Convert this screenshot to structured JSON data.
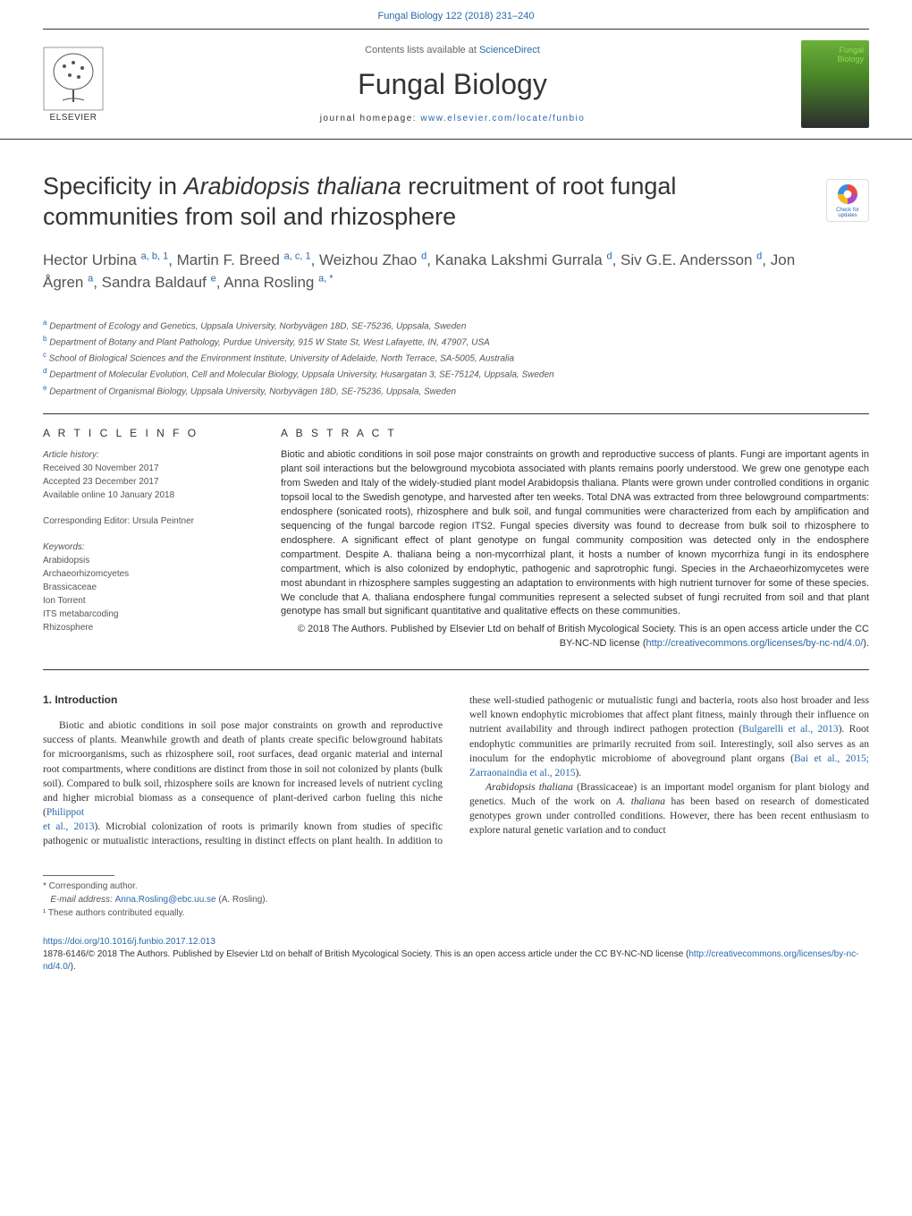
{
  "header": {
    "citation_link": "Fungal Biology 122 (2018) 231–240",
    "sciencedirect_prefix": "Contents lists available at ",
    "sciencedirect": "ScienceDirect",
    "journal_name": "Fungal Biology",
    "homepage_prefix": "journal homepage: ",
    "homepage_url": "www.elsevier.com/locate/funbio",
    "elsevier": "ELSEVIER"
  },
  "title": "Specificity in Arabidopsis thaliana recruitment of root fungal communities from soil and rhizosphere",
  "authors_html": "Hector Urbina <span class='aff-sup'>a, b, 1</span>, Martin F. Breed <span class='aff-sup'>a, c, 1</span>, Weizhou Zhao <span class='aff-sup'>d</span>, Kanaka Lakshmi Gurrala <span class='aff-sup'>d</span>, Siv G.E. Andersson <span class='aff-sup'>d</span>, Jon Ågren <span class='aff-sup'>a</span>, Sandra Baldauf <span class='aff-sup'>e</span>, Anna Rosling <span class='aff-sup'>a, *</span>",
  "affiliations": [
    {
      "sup": "a",
      "text": "Department of Ecology and Genetics, Uppsala University, Norbyvägen 18D, SE-75236, Uppsala, Sweden"
    },
    {
      "sup": "b",
      "text": "Department of Botany and Plant Pathology, Purdue University, 915 W State St, West Lafayette, IN, 47907, USA"
    },
    {
      "sup": "c",
      "text": "School of Biological Sciences and the Environment Institute, University of Adelaide, North Terrace, SA-5005, Australia"
    },
    {
      "sup": "d",
      "text": "Department of Molecular Evolution, Cell and Molecular Biology, Uppsala University, Husargatan 3, SE-75124, Uppsala, Sweden"
    },
    {
      "sup": "e",
      "text": "Department of Organismal Biology, Uppsala University, Norbyvägen 18D, SE-75236, Uppsala, Sweden"
    }
  ],
  "check_badge": "Check for updates",
  "article_info": {
    "heading": "A R T I C L E  I N F O",
    "history_label": "Article history:",
    "received": "Received 30 November 2017",
    "accepted": "Accepted 23 December 2017",
    "online": "Available online 10 January 2018",
    "editor": "Corresponding Editor: Ursula Peintner",
    "keywords_label": "Keywords:",
    "keywords": [
      "Arabidopsis",
      "Archaeorhizomcyetes",
      "Brassicaceae",
      "Ion Torrent",
      "ITS metabarcoding",
      "Rhizosphere"
    ]
  },
  "abstract": {
    "heading": "A B S T R A C T",
    "text": "Biotic and abiotic conditions in soil pose major constraints on growth and reproductive success of plants. Fungi are important agents in plant soil interactions but the belowground mycobiota associated with plants remains poorly understood. We grew one genotype each from Sweden and Italy of the widely-studied plant model Arabidopsis thaliana. Plants were grown under controlled conditions in organic topsoil local to the Swedish genotype, and harvested after ten weeks. Total DNA was extracted from three belowground compartments: endosphere (sonicated roots), rhizosphere and bulk soil, and fungal communities were characterized from each by amplification and sequencing of the fungal barcode region ITS2. Fungal species diversity was found to decrease from bulk soil to rhizosphere to endosphere. A significant effect of plant genotype on fungal community composition was detected only in the endosphere compartment. Despite A. thaliana being a non-mycorrhizal plant, it hosts a number of known mycorrhiza fungi in its endosphere compartment, which is also colonized by endophytic, pathogenic and saprotrophic fungi. Species in the Archaeorhizomycetes were most abundant in rhizosphere samples suggesting an adaptation to environments with high nutrient turnover for some of these species. We conclude that A. thaliana endosphere fungal communities represent a selected subset of fungi recruited from soil and that plant genotype has small but significant quantitative and qualitative effects on these communities.",
    "copyright": "© 2018 The Authors. Published by Elsevier Ltd on behalf of British Mycological Society. This is an open access article under the CC BY-NC-ND license (",
    "license_url": "http://creativecommons.org/licenses/by-nc-nd/4.0/",
    "copyright_close": ")."
  },
  "intro": {
    "heading": "1. Introduction",
    "para1": "Biotic and abiotic conditions in soil pose major constraints on growth and reproductive success of plants. Meanwhile growth and death of plants create specific belowground habitats for microorganisms, such as rhizosphere soil, root surfaces, dead organic material and internal root compartments, where conditions are distinct from those in soil not colonized by plants (bulk soil). Compared to bulk soil, rhizosphere soils are known for increased levels of nutrient cycling and higher microbial biomass as a consequence of plant-derived carbon fueling this niche (Philippot",
    "para2_pre": "et al., 2013). Microbial colonization of roots is primarily known from studies of specific pathogenic or mutualistic interactions, resulting in distinct effects on plant health. In addition to these well-studied pathogenic or mutualistic fungi and bacteria, roots also host broader and less well known endophytic microbiomes that affect plant fitness, mainly through their influence on nutrient availability and through indirect pathogen protection (Bulgarelli et al., 2013). Root endophytic communities are primarily recruited from soil. Interestingly, soil also serves as an inoculum for the endophytic microbiome of aboveground plant organs (Bai et al., 2015; Zarraonaindia et al., 2015).",
    "para3": "Arabidopsis thaliana (Brassicaceae) is an important model organism for plant biology and genetics. Much of the work on A. thaliana has been based on research of domesticated genotypes grown under controlled conditions. However, there has been recent enthusiasm to explore natural genetic variation and to conduct"
  },
  "footnotes": {
    "corr": "* Corresponding author.",
    "email_label": "E-mail address: ",
    "email": "Anna.Rosling@ebc.uu.se",
    "email_suffix": " (A. Rosling).",
    "note1": "¹ These authors contributed equally."
  },
  "bottom": {
    "doi": "https://doi.org/10.1016/j.funbio.2017.12.013",
    "license_line": "1878-6146/© 2018 The Authors. Published by Elsevier Ltd on behalf of British Mycological Society. This is an open access article under the CC BY-NC-ND license (",
    "license_url": "http://creativecommons.org/licenses/by-nc-nd/4.0/",
    "license_close": ")."
  },
  "colors": {
    "link": "#2968aa",
    "text": "#333333",
    "muted": "#555555"
  }
}
